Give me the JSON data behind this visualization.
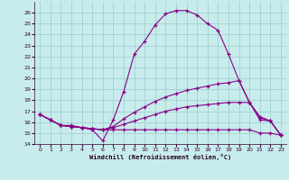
{
  "xlabel": "Windchill (Refroidissement éolien,°C)",
  "bg_color": "#c8ecec",
  "line_color": "#880088",
  "grid_color": "#99cccc",
  "xlim": [
    -0.5,
    23.5
  ],
  "ylim": [
    14,
    27
  ],
  "xticks": [
    0,
    1,
    2,
    3,
    4,
    5,
    6,
    7,
    8,
    9,
    10,
    11,
    12,
    13,
    14,
    15,
    16,
    17,
    18,
    19,
    20,
    21,
    22,
    23
  ],
  "yticks": [
    14,
    15,
    16,
    17,
    18,
    19,
    20,
    21,
    22,
    23,
    24,
    25,
    26
  ],
  "lines": [
    {
      "x": [
        0,
        1,
        2,
        3,
        4,
        5,
        6,
        7,
        8,
        9,
        10,
        11,
        12,
        13,
        14,
        15,
        16,
        17,
        18,
        19,
        20,
        21,
        22,
        23
      ],
      "y": [
        16.7,
        16.2,
        15.7,
        15.7,
        15.5,
        15.3,
        14.3,
        16.2,
        18.8,
        22.2,
        23.4,
        24.9,
        25.9,
        26.2,
        26.2,
        25.8,
        25.0,
        24.4,
        22.2,
        19.8,
        17.8,
        16.4,
        16.1,
        14.8
      ]
    },
    {
      "x": [
        0,
        1,
        2,
        3,
        4,
        5,
        6,
        7,
        8,
        9,
        10,
        11,
        12,
        13,
        14,
        15,
        16,
        17,
        18,
        19,
        20,
        21,
        22,
        23
      ],
      "y": [
        16.7,
        16.2,
        15.7,
        15.6,
        15.5,
        15.4,
        15.3,
        15.6,
        16.3,
        16.9,
        17.4,
        17.9,
        18.3,
        18.6,
        18.9,
        19.1,
        19.3,
        19.5,
        19.6,
        19.8,
        17.8,
        16.5,
        16.1,
        14.8
      ]
    },
    {
      "x": [
        0,
        1,
        2,
        3,
        4,
        5,
        6,
        7,
        8,
        9,
        10,
        11,
        12,
        13,
        14,
        15,
        16,
        17,
        18,
        19,
        20,
        21,
        22,
        23
      ],
      "y": [
        16.7,
        16.2,
        15.7,
        15.6,
        15.5,
        15.4,
        15.3,
        15.5,
        15.8,
        16.1,
        16.4,
        16.7,
        17.0,
        17.2,
        17.4,
        17.5,
        17.6,
        17.7,
        17.8,
        17.8,
        17.8,
        16.2,
        16.1,
        14.8
      ]
    },
    {
      "x": [
        0,
        1,
        2,
        3,
        4,
        5,
        6,
        7,
        8,
        9,
        10,
        11,
        12,
        13,
        14,
        15,
        16,
        17,
        18,
        19,
        20,
        21,
        22,
        23
      ],
      "y": [
        16.7,
        16.2,
        15.7,
        15.6,
        15.5,
        15.4,
        15.3,
        15.3,
        15.3,
        15.3,
        15.3,
        15.3,
        15.3,
        15.3,
        15.3,
        15.3,
        15.3,
        15.3,
        15.3,
        15.3,
        15.3,
        15.0,
        15.0,
        14.8
      ]
    }
  ]
}
